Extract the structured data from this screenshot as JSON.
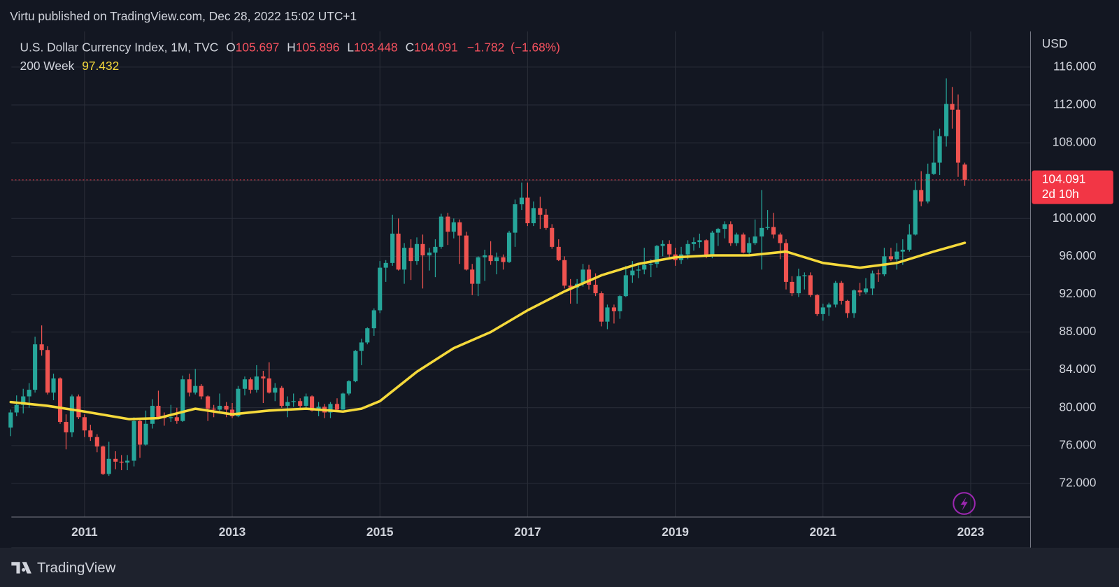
{
  "chart_data": {
    "type": "candlestick",
    "publisher": "Virtu published on TradingView.com, Dec 28, 2022 15:02 UTC+1",
    "legend": {
      "symbol": "U.S. Dollar Currency Index, 1M, TVC",
      "o_label": "O",
      "h_label": "H",
      "l_label": "L",
      "c_label": "C",
      "change": "−1.782",
      "change_pct": "(−1.68%)"
    },
    "currency": "USD",
    "countdown": "2d 10h",
    "brand": "TradingView",
    "up_color": "#26a69a",
    "down_color": "#ef5350",
    "grid": true,
    "xlim": [
      2010.01,
      2023.81
    ],
    "xticks": [
      2011,
      2013,
      2015,
      2017,
      2019,
      2021,
      2023
    ],
    "ylim": [
      68.45,
      119.77
    ],
    "yticks": [
      {
        "value": 72,
        "label": "72.000"
      },
      {
        "value": 76,
        "label": "76.000"
      },
      {
        "value": 80,
        "label": "80.000"
      },
      {
        "value": 84,
        "label": "84.000"
      },
      {
        "value": 88,
        "label": "88.000"
      },
      {
        "value": 92,
        "label": "92.000"
      },
      {
        "value": 96,
        "label": "96.000"
      },
      {
        "value": 100,
        "label": "100.000"
      },
      {
        "value": 104,
        "label": "104.000"
      },
      {
        "value": 108,
        "label": "108.000"
      },
      {
        "value": 112,
        "label": "112.000"
      },
      {
        "value": 116,
        "label": "116.000"
      }
    ],
    "x": [
      2010.0,
      2010.08,
      2010.17,
      2010.25,
      2010.33,
      2010.42,
      2010.5,
      2010.58,
      2010.67,
      2010.75,
      2010.83,
      2010.92,
      2011.0,
      2011.08,
      2011.17,
      2011.25,
      2011.33,
      2011.42,
      2011.5,
      2011.58,
      2011.67,
      2011.75,
      2011.83,
      2011.92,
      2012.0,
      2012.08,
      2012.17,
      2012.25,
      2012.33,
      2012.42,
      2012.5,
      2012.58,
      2012.67,
      2012.75,
      2012.83,
      2012.92,
      2013.0,
      2013.08,
      2013.17,
      2013.25,
      2013.33,
      2013.42,
      2013.5,
      2013.58,
      2013.67,
      2013.75,
      2013.83,
      2013.92,
      2014.0,
      2014.08,
      2014.17,
      2014.25,
      2014.33,
      2014.42,
      2014.5,
      2014.58,
      2014.67,
      2014.75,
      2014.83,
      2014.92,
      2015.0,
      2015.08,
      2015.17,
      2015.25,
      2015.33,
      2015.42,
      2015.5,
      2015.58,
      2015.67,
      2015.75,
      2015.83,
      2015.92,
      2016.0,
      2016.08,
      2016.17,
      2016.25,
      2016.33,
      2016.42,
      2016.5,
      2016.58,
      2016.67,
      2016.75,
      2016.83,
      2016.92,
      2017.0,
      2017.08,
      2017.17,
      2017.25,
      2017.33,
      2017.42,
      2017.5,
      2017.58,
      2017.67,
      2017.75,
      2017.83,
      2017.92,
      2018.0,
      2018.08,
      2018.17,
      2018.25,
      2018.33,
      2018.42,
      2018.5,
      2018.58,
      2018.67,
      2018.75,
      2018.83,
      2018.92,
      2019.0,
      2019.08,
      2019.17,
      2019.25,
      2019.33,
      2019.42,
      2019.5,
      2019.58,
      2019.67,
      2019.75,
      2019.83,
      2019.92,
      2020.0,
      2020.08,
      2020.17,
      2020.25,
      2020.33,
      2020.42,
      2020.5,
      2020.58,
      2020.67,
      2020.75,
      2020.83,
      2020.92,
      2021.0,
      2021.08,
      2021.17,
      2021.25,
      2021.33,
      2021.42,
      2021.5,
      2021.58,
      2021.67,
      2021.75,
      2021.83,
      2021.92,
      2022.0,
      2022.08,
      2022.17,
      2022.25,
      2022.33,
      2022.42,
      2022.5,
      2022.58,
      2022.67,
      2022.75,
      2022.83,
      2022.92
    ],
    "candles": [
      [
        77.9,
        79.8,
        77.0,
        79.5
      ],
      [
        79.5,
        81.3,
        79.1,
        80.3
      ],
      [
        80.3,
        82.0,
        79.4,
        81.2
      ],
      [
        81.2,
        82.6,
        80.0,
        81.9
      ],
      [
        81.9,
        87.5,
        81.6,
        86.7
      ],
      [
        86.7,
        88.7,
        85.5,
        86.1
      ],
      [
        86.1,
        86.5,
        81.4,
        81.6
      ],
      [
        81.6,
        83.6,
        80.8,
        83.1
      ],
      [
        83.1,
        83.2,
        78.3,
        78.5
      ],
      [
        78.5,
        79.3,
        75.6,
        77.4
      ],
      [
        77.4,
        81.4,
        76.9,
        81.2
      ],
      [
        81.2,
        81.4,
        78.8,
        79.0
      ],
      [
        79.0,
        79.3,
        76.9,
        77.6
      ],
      [
        77.6,
        78.2,
        76.5,
        76.9
      ],
      [
        76.9,
        77.2,
        75.3,
        75.9
      ],
      [
        75.9,
        76.0,
        72.9,
        73.0
      ],
      [
        73.0,
        76.4,
        72.8,
        74.6
      ],
      [
        74.6,
        75.4,
        73.5,
        74.3
      ],
      [
        74.3,
        75.0,
        73.4,
        74.2
      ],
      [
        74.2,
        75.0,
        73.4,
        74.4
      ],
      [
        74.4,
        79.0,
        73.8,
        78.6
      ],
      [
        78.6,
        78.9,
        74.7,
        76.1
      ],
      [
        76.1,
        79.7,
        76.0,
        78.3
      ],
      [
        78.3,
        80.9,
        77.8,
        80.2
      ],
      [
        80.2,
        81.8,
        78.9,
        79.0
      ],
      [
        79.0,
        79.5,
        78.1,
        78.9
      ],
      [
        78.9,
        80.3,
        78.5,
        79.0
      ],
      [
        79.0,
        80.0,
        78.3,
        78.6
      ],
      [
        78.6,
        83.4,
        78.5,
        83.0
      ],
      [
        83.0,
        83.6,
        81.2,
        81.6
      ],
      [
        81.6,
        84.1,
        81.4,
        82.3
      ],
      [
        82.3,
        82.5,
        80.9,
        81.2
      ],
      [
        81.2,
        81.3,
        78.6,
        79.9
      ],
      [
        79.9,
        80.3,
        79.0,
        79.8
      ],
      [
        79.8,
        81.5,
        79.6,
        80.2
      ],
      [
        80.2,
        80.6,
        79.0,
        79.8
      ],
      [
        79.8,
        80.5,
        78.9,
        79.1
      ],
      [
        79.1,
        82.3,
        79.0,
        82.0
      ],
      [
        82.0,
        83.3,
        81.3,
        83.0
      ],
      [
        83.0,
        83.2,
        81.5,
        81.9
      ],
      [
        81.9,
        84.5,
        81.6,
        83.3
      ],
      [
        83.3,
        83.9,
        80.5,
        83.1
      ],
      [
        83.1,
        84.8,
        81.5,
        81.6
      ],
      [
        81.6,
        82.6,
        80.7,
        82.1
      ],
      [
        82.1,
        82.3,
        80.0,
        80.2
      ],
      [
        80.2,
        81.2,
        79.0,
        80.6
      ],
      [
        80.6,
        81.5,
        80.1,
        80.7
      ],
      [
        80.7,
        81.0,
        79.8,
        80.2
      ],
      [
        80.2,
        81.5,
        80.0,
        81.2
      ],
      [
        81.2,
        81.3,
        79.6,
        79.7
      ],
      [
        79.7,
        80.6,
        79.1,
        80.1
      ],
      [
        80.1,
        80.4,
        78.9,
        79.5
      ],
      [
        79.5,
        80.6,
        78.9,
        80.4
      ],
      [
        80.4,
        81.0,
        79.7,
        79.8
      ],
      [
        79.8,
        81.6,
        79.8,
        81.5
      ],
      [
        81.5,
        82.9,
        81.3,
        82.8
      ],
      [
        82.8,
        86.1,
        82.7,
        86.0
      ],
      [
        86.0,
        87.3,
        84.5,
        86.9
      ],
      [
        86.9,
        88.5,
        86.7,
        88.4
      ],
      [
        88.4,
        90.5,
        87.6,
        90.3
      ],
      [
        90.3,
        95.5,
        90.0,
        94.8
      ],
      [
        94.8,
        95.6,
        93.3,
        95.3
      ],
      [
        95.3,
        100.4,
        95.0,
        98.4
      ],
      [
        98.4,
        100.0,
        94.5,
        94.6
      ],
      [
        94.6,
        97.4,
        93.1,
        96.9
      ],
      [
        96.9,
        97.8,
        93.5,
        95.5
      ],
      [
        95.5,
        98.0,
        95.1,
        97.3
      ],
      [
        97.3,
        98.3,
        92.6,
        96.1
      ],
      [
        96.1,
        96.9,
        94.5,
        96.4
      ],
      [
        96.4,
        97.8,
        93.8,
        97.0
      ],
      [
        97.0,
        100.5,
        96.8,
        100.2
      ],
      [
        100.2,
        100.6,
        97.2,
        98.6
      ],
      [
        98.6,
        100.0,
        97.9,
        99.6
      ],
      [
        99.6,
        99.9,
        95.2,
        98.2
      ],
      [
        98.2,
        98.6,
        94.5,
        94.6
      ],
      [
        94.6,
        95.2,
        91.9,
        93.1
      ],
      [
        93.1,
        96.0,
        91.8,
        95.9
      ],
      [
        95.9,
        96.7,
        93.4,
        96.1
      ],
      [
        96.1,
        97.6,
        95.1,
        95.5
      ],
      [
        95.5,
        96.4,
        94.1,
        95.9
      ],
      [
        95.9,
        96.2,
        94.6,
        95.4
      ],
      [
        95.4,
        98.7,
        95.3,
        98.5
      ],
      [
        98.5,
        102.0,
        97.0,
        101.5
      ],
      [
        101.5,
        103.8,
        100.9,
        102.2
      ],
      [
        102.2,
        103.8,
        99.2,
        99.5
      ],
      [
        99.5,
        101.8,
        99.2,
        101.1
      ],
      [
        101.1,
        102.3,
        98.9,
        100.4
      ],
      [
        100.4,
        101.0,
        98.8,
        99.0
      ],
      [
        99.0,
        99.4,
        96.8,
        97.0
      ],
      [
        97.0,
        97.8,
        95.5,
        95.6
      ],
      [
        95.6,
        96.0,
        92.6,
        92.9
      ],
      [
        92.9,
        93.6,
        91.0,
        92.7
      ],
      [
        92.7,
        93.6,
        91.0,
        93.1
      ],
      [
        93.1,
        95.2,
        92.8,
        94.6
      ],
      [
        94.6,
        95.1,
        92.5,
        93.0
      ],
      [
        93.0,
        94.2,
        91.8,
        92.1
      ],
      [
        92.1,
        92.3,
        88.6,
        89.1
      ],
      [
        89.1,
        90.9,
        88.3,
        90.6
      ],
      [
        90.6,
        90.9,
        88.9,
        90.2
      ],
      [
        90.2,
        91.9,
        89.4,
        91.8
      ],
      [
        91.8,
        95.0,
        91.7,
        94.0
      ],
      [
        94.0,
        95.5,
        93.2,
        94.5
      ],
      [
        94.5,
        95.2,
        93.7,
        94.6
      ],
      [
        94.6,
        96.9,
        94.1,
        95.1
      ],
      [
        95.1,
        95.7,
        93.8,
        95.2
      ],
      [
        95.2,
        97.2,
        94.8,
        97.1
      ],
      [
        97.1,
        97.7,
        96.0,
        97.3
      ],
      [
        97.3,
        97.7,
        95.7,
        96.2
      ],
      [
        96.2,
        96.9,
        95.0,
        95.6
      ],
      [
        95.6,
        97.0,
        95.2,
        96.2
      ],
      [
        96.2,
        97.7,
        95.7,
        97.3
      ],
      [
        97.3,
        98.0,
        96.6,
        97.5
      ],
      [
        97.5,
        98.4,
        96.9,
        97.7
      ],
      [
        97.7,
        97.8,
        95.8,
        96.1
      ],
      [
        96.1,
        98.7,
        95.8,
        98.5
      ],
      [
        98.5,
        99.0,
        97.1,
        98.9
      ],
      [
        98.9,
        99.7,
        97.9,
        99.4
      ],
      [
        99.4,
        99.7,
        97.1,
        97.4
      ],
      [
        97.4,
        98.5,
        97.1,
        98.3
      ],
      [
        98.3,
        98.5,
        96.3,
        96.4
      ],
      [
        96.4,
        98.0,
        96.0,
        97.4
      ],
      [
        97.4,
        99.9,
        97.2,
        98.1
      ],
      [
        98.1,
        103.0,
        94.6,
        99.0
      ],
      [
        99.0,
        100.9,
        98.8,
        99.1
      ],
      [
        99.1,
        100.6,
        97.9,
        98.3
      ],
      [
        98.3,
        98.5,
        95.7,
        97.4
      ],
      [
        97.4,
        97.8,
        92.5,
        93.3
      ],
      [
        93.3,
        93.9,
        91.8,
        92.1
      ],
      [
        92.1,
        94.7,
        91.7,
        93.9
      ],
      [
        93.9,
        94.3,
        92.5,
        94.0
      ],
      [
        94.0,
        94.3,
        91.7,
        91.9
      ],
      [
        91.9,
        92.0,
        89.7,
        89.9
      ],
      [
        89.9,
        91.0,
        89.2,
        90.6
      ],
      [
        90.6,
        91.1,
        89.7,
        90.9
      ],
      [
        90.9,
        93.4,
        90.6,
        93.2
      ],
      [
        93.2,
        93.4,
        90.9,
        91.3
      ],
      [
        91.3,
        91.4,
        89.5,
        90.0
      ],
      [
        90.0,
        92.5,
        89.5,
        92.4
      ],
      [
        92.4,
        93.2,
        91.8,
        92.2
      ],
      [
        92.2,
        93.7,
        92.0,
        92.6
      ],
      [
        92.6,
        94.5,
        91.9,
        94.2
      ],
      [
        94.2,
        94.6,
        93.3,
        94.1
      ],
      [
        94.1,
        96.9,
        93.9,
        96.0
      ],
      [
        96.0,
        96.9,
        95.5,
        95.7
      ],
      [
        95.7,
        97.4,
        94.6,
        96.5
      ],
      [
        96.5,
        97.8,
        95.1,
        96.7
      ],
      [
        96.7,
        99.4,
        96.5,
        98.3
      ],
      [
        98.3,
        103.9,
        98.2,
        103.0
      ],
      [
        103.0,
        105.0,
        101.3,
        101.8
      ],
      [
        101.8,
        105.8,
        101.6,
        104.7
      ],
      [
        104.7,
        109.3,
        104.6,
        105.9
      ],
      [
        105.9,
        109.5,
        104.6,
        108.7
      ],
      [
        108.7,
        114.8,
        107.6,
        112.1
      ],
      [
        112.1,
        113.9,
        109.5,
        111.5
      ],
      [
        111.5,
        113.1,
        104.4,
        105.9
      ],
      [
        105.697,
        105.896,
        103.448,
        104.091
      ]
    ],
    "ma": {
      "name": "200 Week",
      "color": "#f5d93b",
      "x": [
        2010.0,
        2010.5,
        2011,
        2011.6,
        2012,
        2012.5,
        2013,
        2013.5,
        2014,
        2014.5,
        2014.75,
        2015,
        2015.5,
        2016,
        2016.5,
        2017,
        2017.5,
        2018,
        2018.5,
        2019,
        2019.5,
        2020,
        2020.5,
        2021,
        2021.5,
        2022,
        2022.5,
        2022.92
      ],
      "values": [
        80.6,
        80.2,
        79.6,
        78.8,
        78.9,
        79.9,
        79.3,
        79.7,
        79.9,
        79.6,
        79.9,
        80.7,
        83.8,
        86.3,
        88.0,
        90.3,
        92.3,
        94.0,
        95.2,
        95.9,
        96.1,
        96.1,
        96.5,
        95.3,
        94.8,
        95.3,
        96.5,
        97.432
      ]
    }
  }
}
